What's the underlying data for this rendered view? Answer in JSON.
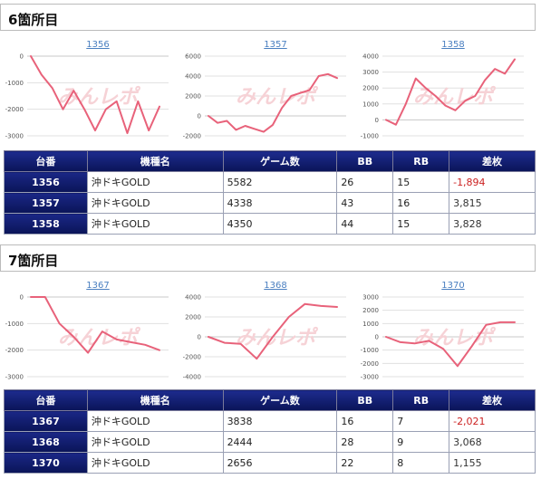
{
  "sections": [
    {
      "title": "6箇所目",
      "charts": [
        {
          "label": "1356",
          "yticks": [
            "0",
            "-1000",
            "-2000",
            "-3000"
          ],
          "ymin": -3000,
          "ymax": 0,
          "values": [
            0,
            -700,
            -1200,
            -2000,
            -1300,
            -2000,
            -2800,
            -2000,
            -1700,
            -2900,
            -1700,
            -2800,
            -1900
          ]
        },
        {
          "label": "1357",
          "yticks": [
            "6000",
            "4000",
            "2000",
            "0",
            "-2000"
          ],
          "ymin": -2000,
          "ymax": 6000,
          "values": [
            0,
            -700,
            -500,
            -1400,
            -1000,
            -1300,
            -1600,
            -900,
            800,
            2000,
            2300,
            2600,
            4000,
            4200,
            3800
          ]
        },
        {
          "label": "1358",
          "yticks": [
            "4000",
            "3000",
            "2000",
            "1000",
            "0",
            "-1000"
          ],
          "ymin": -1000,
          "ymax": 4000,
          "values": [
            0,
            -300,
            1000,
            2600,
            2000,
            1500,
            900,
            600,
            1200,
            1500,
            2500,
            3200,
            2900,
            3800
          ]
        }
      ],
      "table": {
        "headers": [
          "台番",
          "機種名",
          "ゲーム数",
          "BB",
          "RB",
          "差枚"
        ],
        "rows": [
          {
            "no": "1356",
            "machine": "沖ドキGOLD",
            "games": "5582",
            "bb": "26",
            "rb": "15",
            "diff": "-1,894"
          },
          {
            "no": "1357",
            "machine": "沖ドキGOLD",
            "games": "4338",
            "bb": "43",
            "rb": "16",
            "diff": "3,815"
          },
          {
            "no": "1358",
            "machine": "沖ドキGOLD",
            "games": "4350",
            "bb": "44",
            "rb": "15",
            "diff": "3,828"
          }
        ]
      }
    },
    {
      "title": "7箇所目",
      "charts": [
        {
          "label": "1367",
          "yticks": [
            "0",
            "-1000",
            "-2000",
            "-3000"
          ],
          "ymin": -3000,
          "ymax": 0,
          "values": [
            0,
            0,
            -1000,
            -1500,
            -2100,
            -1300,
            -1600,
            -1700,
            -1800,
            -2000
          ]
        },
        {
          "label": "1368",
          "yticks": [
            "4000",
            "2000",
            "0",
            "-2000",
            "-4000"
          ],
          "ymin": -4000,
          "ymax": 4000,
          "values": [
            0,
            -600,
            -700,
            -2200,
            0,
            2000,
            3300,
            3100,
            3000
          ]
        },
        {
          "label": "1370",
          "yticks": [
            "3000",
            "2000",
            "1000",
            "0",
            "-1000",
            "-2000",
            "-3000"
          ],
          "ymin": -3000,
          "ymax": 3000,
          "values": [
            0,
            -400,
            -500,
            -300,
            -900,
            -2200,
            -700,
            900,
            1100,
            1100
          ]
        }
      ],
      "table": {
        "headers": [
          "台番",
          "機種名",
          "ゲーム数",
          "BB",
          "RB",
          "差枚"
        ],
        "rows": [
          {
            "no": "1367",
            "machine": "沖ドキGOLD",
            "games": "3838",
            "bb": "16",
            "rb": "7",
            "diff": "-2,021"
          },
          {
            "no": "1368",
            "machine": "沖ドキGOLD",
            "games": "2444",
            "bb": "28",
            "rb": "9",
            "diff": "3,068"
          },
          {
            "no": "1370",
            "machine": "沖ドキGOLD",
            "games": "2656",
            "bb": "22",
            "rb": "8",
            "diff": "1,155"
          }
        ]
      }
    }
  ],
  "watermark": "みんレポ",
  "colors": {
    "series": "#e8627a",
    "header_bg": "#0f1a6e",
    "negative": "#cc2222",
    "link": "#4a7fc0"
  }
}
